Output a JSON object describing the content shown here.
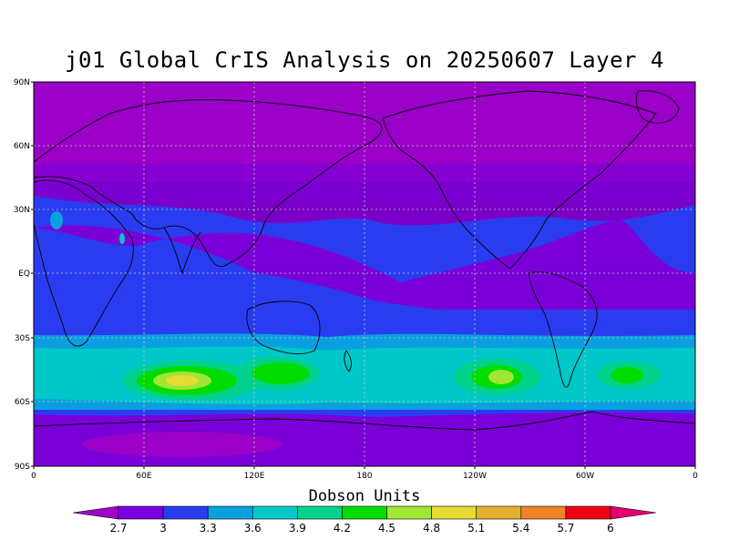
{
  "title": "j01 Global CrIS Analysis on 20250607 Layer 4",
  "map": {
    "lat_labels": [
      "90N",
      "60N",
      "30N",
      "EQ",
      "30S",
      "60S",
      "90S"
    ],
    "lon_labels": [
      "0",
      "60E",
      "120E",
      "180",
      "120W",
      "60W",
      "0"
    ],
    "grid": true,
    "background_color": "#7a00c8"
  },
  "legend": {
    "title": "Dobson Units",
    "ticks": [
      "2.7",
      "3",
      "3.3",
      "3.6",
      "3.9",
      "4.2",
      "4.5",
      "4.8",
      "5.1",
      "5.4",
      "5.7",
      "6"
    ],
    "colors": [
      "#a000c8",
      "#7a00e0",
      "#2a3cf0",
      "#0aa0e0",
      "#00c8c8",
      "#00d28c",
      "#00dc00",
      "#a0e632",
      "#e6dc32",
      "#e6af2d",
      "#f08228",
      "#f00014",
      "#e6006e"
    ]
  }
}
